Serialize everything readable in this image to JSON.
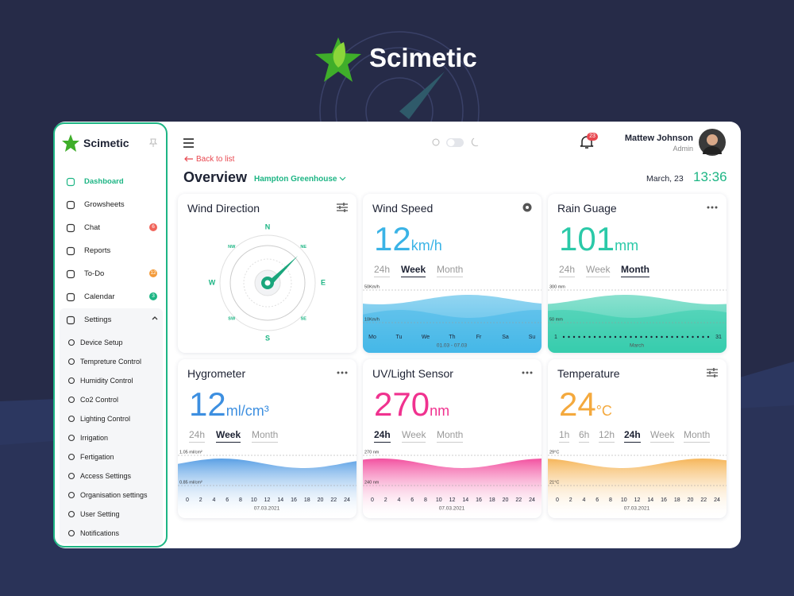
{
  "brand": {
    "name": "Scimetic"
  },
  "sidebar": {
    "brand": "Scimetic",
    "nav": [
      {
        "label": "Dashboard"
      },
      {
        "label": "Growsheets"
      },
      {
        "label": "Chat",
        "badge": "6",
        "badge_color": "#f0645a"
      },
      {
        "label": "Reports"
      },
      {
        "label": "To-Do",
        "badge": "12",
        "badge_color": "#f39a3a"
      },
      {
        "label": "Calendar",
        "badge": "3",
        "badge_color": "#1db584"
      },
      {
        "label": "Settings"
      }
    ],
    "settings": [
      "Device Setup",
      "Tempreture Control",
      "Humidity Control",
      "Co2 Control",
      "Lighting Control",
      "Irrigation",
      "Fertigation",
      "Access Settings",
      "Organisation settings",
      "User Setting",
      "Notifications"
    ]
  },
  "header": {
    "notifications": "23",
    "user_name": "Mattew Johnson",
    "user_role": "Admin",
    "back": "Back to list",
    "title": "Overview",
    "location": "Hampton Greenhouse",
    "date": "March, 23",
    "time": "13:36"
  },
  "cards": [
    {
      "title": "Wind Direction",
      "compass": [
        "N",
        "NE",
        "E",
        "SE",
        "S",
        "SW",
        "W",
        "NW"
      ]
    },
    {
      "title": "Wind Speed",
      "value": "12",
      "unit": "km/h",
      "color": "#3ab3e6",
      "tabs": [
        "24h",
        "Week",
        "Month"
      ],
      "active": 1,
      "y_labels": [
        "50Km/h",
        "10Km/h"
      ],
      "x_labels": [
        "Mo",
        "Tu",
        "We",
        "Th",
        "Fr",
        "Sa",
        "Su"
      ],
      "x_caption": "01.03 - 07.03"
    },
    {
      "title": "Rain Guage",
      "value": "101",
      "unit": "mm",
      "color": "#2bc9a8",
      "tabs": [
        "24h",
        "Week",
        "Month"
      ],
      "active": 2,
      "y_labels": [
        "300 mm",
        "50 mm"
      ],
      "x_labels": [
        "1",
        "31"
      ],
      "x_caption": "March"
    },
    {
      "title": "Hygrometer",
      "value": "12",
      "unit": "ml/cm³",
      "color": "#3d8fe0",
      "tabs": [
        "24h",
        "Week",
        "Month"
      ],
      "active": 1,
      "y_labels": [
        "1.05 ml/cm²",
        "0.85 ml/cm²"
      ],
      "x_labels": [
        "0",
        "2",
        "4",
        "6",
        "8",
        "10",
        "12",
        "14",
        "16",
        "18",
        "20",
        "22",
        "24"
      ],
      "x_caption": "07.03.2021"
    },
    {
      "title": "UV/Light Sensor",
      "value": "270",
      "unit": "nm",
      "color": "#f0328f",
      "tabs": [
        "24h",
        "Week",
        "Month"
      ],
      "active": 0,
      "y_labels": [
        "270 nm",
        "240 nm"
      ],
      "x_labels": [
        "0",
        "2",
        "4",
        "6",
        "8",
        "10",
        "12",
        "14",
        "16",
        "18",
        "20",
        "22",
        "24"
      ],
      "x_caption": "07.03.2021"
    },
    {
      "title": "Temperature",
      "value": "24",
      "unit": "°C",
      "color": "#f4a93d",
      "tabs": [
        "1h",
        "6h",
        "12h",
        "24h",
        "Week",
        "Month"
      ],
      "active": 3,
      "y_labels": [
        "29°C",
        "21°C"
      ],
      "x_labels": [
        "0",
        "2",
        "4",
        "6",
        "8",
        "10",
        "12",
        "14",
        "16",
        "18",
        "20",
        "22",
        "24"
      ],
      "x_caption": "07.03.2021"
    }
  ]
}
